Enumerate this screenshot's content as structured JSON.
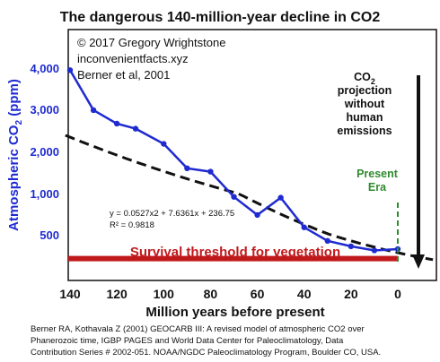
{
  "chart_data": {
    "type": "line",
    "title": "The dangerous 140-million-year decline in CO2",
    "copyright_lines": [
      "© 2017 Gregory Wrightstone",
      "inconvenientfacts.xyz",
      "Berner et al, 2001"
    ],
    "ylabel_parts": [
      "Atmospheric CO",
      "2",
      " (ppm)"
    ],
    "xlabel": "Million years before present",
    "x_ticks": [
      140,
      120,
      100,
      80,
      60,
      40,
      20,
      0
    ],
    "y_tick_labels": [
      "4,000",
      "3,000",
      "2,000",
      "1,000",
      "500"
    ],
    "y_tick_values": [
      4000,
      3000,
      2000,
      1000,
      500
    ],
    "series": [
      {
        "x": [
          140,
          130,
          120,
          112,
          100,
          90,
          80,
          70,
          60,
          50,
          40,
          30,
          20,
          10,
          0
        ],
        "y": [
          3950,
          2980,
          2660,
          2540,
          2180,
          1600,
          1520,
          960,
          740,
          950,
          590,
          410,
          330,
          270,
          290
        ]
      }
    ],
    "trendline": {
      "equation": "y = 0.0527x2 + 7.6361x + 236.75",
      "r_squared": "R² = 0.9818",
      "x_range": [
        142,
        -15
      ]
    },
    "threshold": {
      "label": "Survival threshold for vegetation",
      "y": 150
    },
    "projection": {
      "lines": [
        "CO",
        "projection",
        "without",
        "human",
        "emissions"
      ],
      "subscript": "2"
    },
    "present": {
      "lines": [
        "Present",
        "Era"
      ],
      "x": 0
    },
    "xlim": [
      140,
      -10
    ],
    "colors": {
      "series": "#1f2bd0",
      "trend": "#111111",
      "threshold": "#c0191c",
      "present": "#2e8b2e",
      "y_ticks": "#1f2bd0"
    }
  },
  "source_lines": [
    "Berner RA, Kothavala Z (2001) GEOCARB III: A revised model of atmospheric CO2 over",
    "Phanerozoic time, IGBP PAGES and World Data Center for Paleoclimatology, Data",
    "Contribution Series # 2002-051. NOAA/NGDC Paleoclimatology Program, Boulder CO, USA."
  ]
}
